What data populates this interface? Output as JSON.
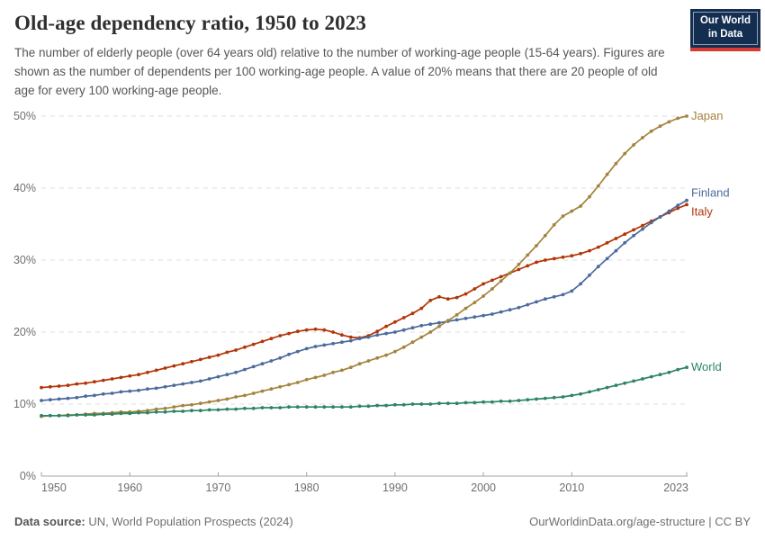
{
  "logo": {
    "line1": "Our World",
    "line2": "in Data",
    "bg_color": "#132E51",
    "stripe_color": "#D93C32"
  },
  "chart_data": {
    "type": "line",
    "title": "Old-age dependency ratio, 1950 to 2023",
    "subtitle": "The number of elderly people (over 64 years old) relative to the number of working-age people (15-64 years). Figures are shown as the number of dependents per 100 working-age people. A value of 20% means that there are 20 people of old age for every 100 working-age people.",
    "xlabel": "",
    "ylabel": "",
    "xlim": [
      1950,
      2023
    ],
    "ylim": [
      0,
      50
    ],
    "grid": "horizontal-dashed",
    "legend_position": "end-of-line-labels",
    "x_ticks": [
      1950,
      1960,
      1970,
      1980,
      1990,
      2000,
      2010,
      2023
    ],
    "y_ticks": [
      0,
      10,
      20,
      30,
      40,
      50
    ],
    "y_tick_suffix": "%",
    "axis_color": "#a3a3a3",
    "gridline_color": "#dedede",
    "x": [
      1950,
      1951,
      1952,
      1953,
      1954,
      1955,
      1956,
      1957,
      1958,
      1959,
      1960,
      1961,
      1962,
      1963,
      1964,
      1965,
      1966,
      1967,
      1968,
      1969,
      1970,
      1971,
      1972,
      1973,
      1974,
      1975,
      1976,
      1977,
      1978,
      1979,
      1980,
      1981,
      1982,
      1983,
      1984,
      1985,
      1986,
      1987,
      1988,
      1989,
      1990,
      1991,
      1992,
      1993,
      1994,
      1995,
      1996,
      1997,
      1998,
      1999,
      2000,
      2001,
      2002,
      2003,
      2004,
      2005,
      2006,
      2007,
      2008,
      2009,
      2010,
      2011,
      2012,
      2013,
      2014,
      2015,
      2016,
      2017,
      2018,
      2019,
      2020,
      2021,
      2022,
      2023
    ],
    "series": [
      {
        "name": "Italy",
        "color": "#B13507",
        "label_dy": 8,
        "values": [
          12.3,
          12.4,
          12.5,
          12.6,
          12.8,
          12.9,
          13.1,
          13.3,
          13.5,
          13.7,
          13.9,
          14.1,
          14.4,
          14.7,
          15.0,
          15.3,
          15.6,
          15.9,
          16.2,
          16.5,
          16.8,
          17.2,
          17.5,
          17.9,
          18.3,
          18.7,
          19.1,
          19.5,
          19.8,
          20.1,
          20.3,
          20.4,
          20.3,
          20.0,
          19.6,
          19.3,
          19.2,
          19.5,
          20.1,
          20.8,
          21.4,
          22.0,
          22.6,
          23.3,
          24.4,
          24.9,
          24.6,
          24.8,
          25.3,
          26.0,
          26.7,
          27.2,
          27.7,
          28.2,
          28.7,
          29.2,
          29.7,
          30.0,
          30.2,
          30.4,
          30.6,
          30.9,
          31.3,
          31.8,
          32.4,
          33.0,
          33.6,
          34.2,
          34.8,
          35.4,
          36.0,
          36.6,
          37.2,
          37.7
        ]
      },
      {
        "name": "Finland",
        "color": "#4C6A9C",
        "label_dy": -8,
        "values": [
          10.5,
          10.6,
          10.7,
          10.8,
          10.9,
          11.1,
          11.2,
          11.4,
          11.5,
          11.7,
          11.8,
          11.9,
          12.1,
          12.2,
          12.4,
          12.6,
          12.8,
          13.0,
          13.2,
          13.5,
          13.8,
          14.1,
          14.4,
          14.8,
          15.2,
          15.6,
          16.0,
          16.4,
          16.9,
          17.3,
          17.7,
          18.0,
          18.2,
          18.4,
          18.6,
          18.8,
          19.1,
          19.3,
          19.6,
          19.8,
          20.0,
          20.3,
          20.6,
          20.9,
          21.1,
          21.3,
          21.5,
          21.7,
          21.9,
          22.1,
          22.3,
          22.5,
          22.8,
          23.1,
          23.4,
          23.8,
          24.2,
          24.6,
          24.9,
          25.2,
          25.7,
          26.7,
          27.9,
          29.1,
          30.2,
          31.3,
          32.4,
          33.4,
          34.3,
          35.2,
          36.0,
          36.8,
          37.6,
          38.3
        ]
      },
      {
        "name": "Japan",
        "color": "#A2843C",
        "label_dy": 0,
        "values": [
          8.3,
          8.4,
          8.4,
          8.5,
          8.5,
          8.6,
          8.7,
          8.7,
          8.8,
          8.9,
          8.9,
          9.0,
          9.1,
          9.3,
          9.4,
          9.6,
          9.8,
          9.9,
          10.1,
          10.3,
          10.5,
          10.7,
          11.0,
          11.2,
          11.5,
          11.8,
          12.1,
          12.4,
          12.7,
          13.0,
          13.4,
          13.7,
          14.0,
          14.4,
          14.7,
          15.1,
          15.6,
          16.0,
          16.4,
          16.8,
          17.3,
          17.9,
          18.6,
          19.3,
          20.0,
          20.8,
          21.6,
          22.4,
          23.3,
          24.1,
          25.0,
          26.0,
          27.1,
          28.2,
          29.4,
          30.7,
          32.0,
          33.4,
          34.9,
          36.1,
          36.8,
          37.5,
          38.8,
          40.3,
          41.9,
          43.4,
          44.8,
          46.0,
          47.0,
          47.9,
          48.6,
          49.2,
          49.7,
          50.0
        ]
      },
      {
        "name": "World",
        "color": "#2C8465",
        "label_dy": 0,
        "values": [
          8.4,
          8.4,
          8.4,
          8.4,
          8.5,
          8.5,
          8.5,
          8.6,
          8.6,
          8.7,
          8.7,
          8.8,
          8.8,
          8.9,
          8.9,
          9.0,
          9.0,
          9.1,
          9.1,
          9.2,
          9.2,
          9.3,
          9.3,
          9.4,
          9.4,
          9.5,
          9.5,
          9.5,
          9.6,
          9.6,
          9.6,
          9.6,
          9.6,
          9.6,
          9.6,
          9.6,
          9.7,
          9.7,
          9.8,
          9.8,
          9.9,
          9.9,
          10.0,
          10.0,
          10.0,
          10.1,
          10.1,
          10.1,
          10.2,
          10.2,
          10.3,
          10.3,
          10.4,
          10.4,
          10.5,
          10.6,
          10.7,
          10.8,
          10.9,
          11.0,
          11.2,
          11.4,
          11.7,
          12.0,
          12.3,
          12.6,
          12.9,
          13.2,
          13.5,
          13.8,
          14.1,
          14.4,
          14.8,
          15.1
        ]
      }
    ]
  },
  "footer": {
    "source_label": "Data source:",
    "source_value": "UN, World Population Prospects (2024)",
    "credit": "OurWorldinData.org/age-structure | CC BY"
  }
}
